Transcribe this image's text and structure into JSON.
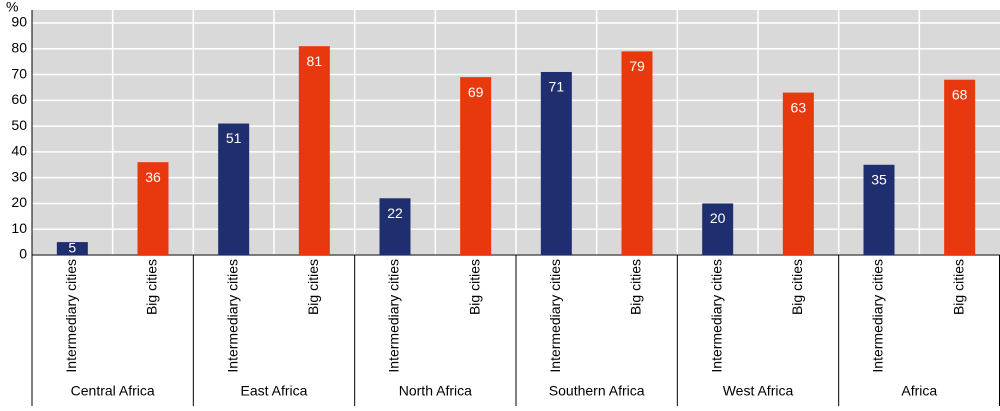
{
  "chart_data": {
    "type": "bar",
    "y_label": "%",
    "categories": [
      "Central Africa",
      "East Africa",
      "North Africa",
      "Southern Africa",
      "West Africa",
      "Africa"
    ],
    "series": [
      {
        "name": "Intermediary cities",
        "color": "#1f2e6e",
        "values": [
          5,
          51,
          22,
          71,
          20,
          35
        ]
      },
      {
        "name": "Big cities",
        "color": "#e8380d",
        "values": [
          36,
          81,
          69,
          79,
          63,
          68
        ]
      }
    ],
    "ylim": [
      0,
      90
    ],
    "yticks": [
      0,
      10,
      20,
      30,
      40,
      50,
      60,
      70,
      80,
      90
    ],
    "grid": true
  }
}
